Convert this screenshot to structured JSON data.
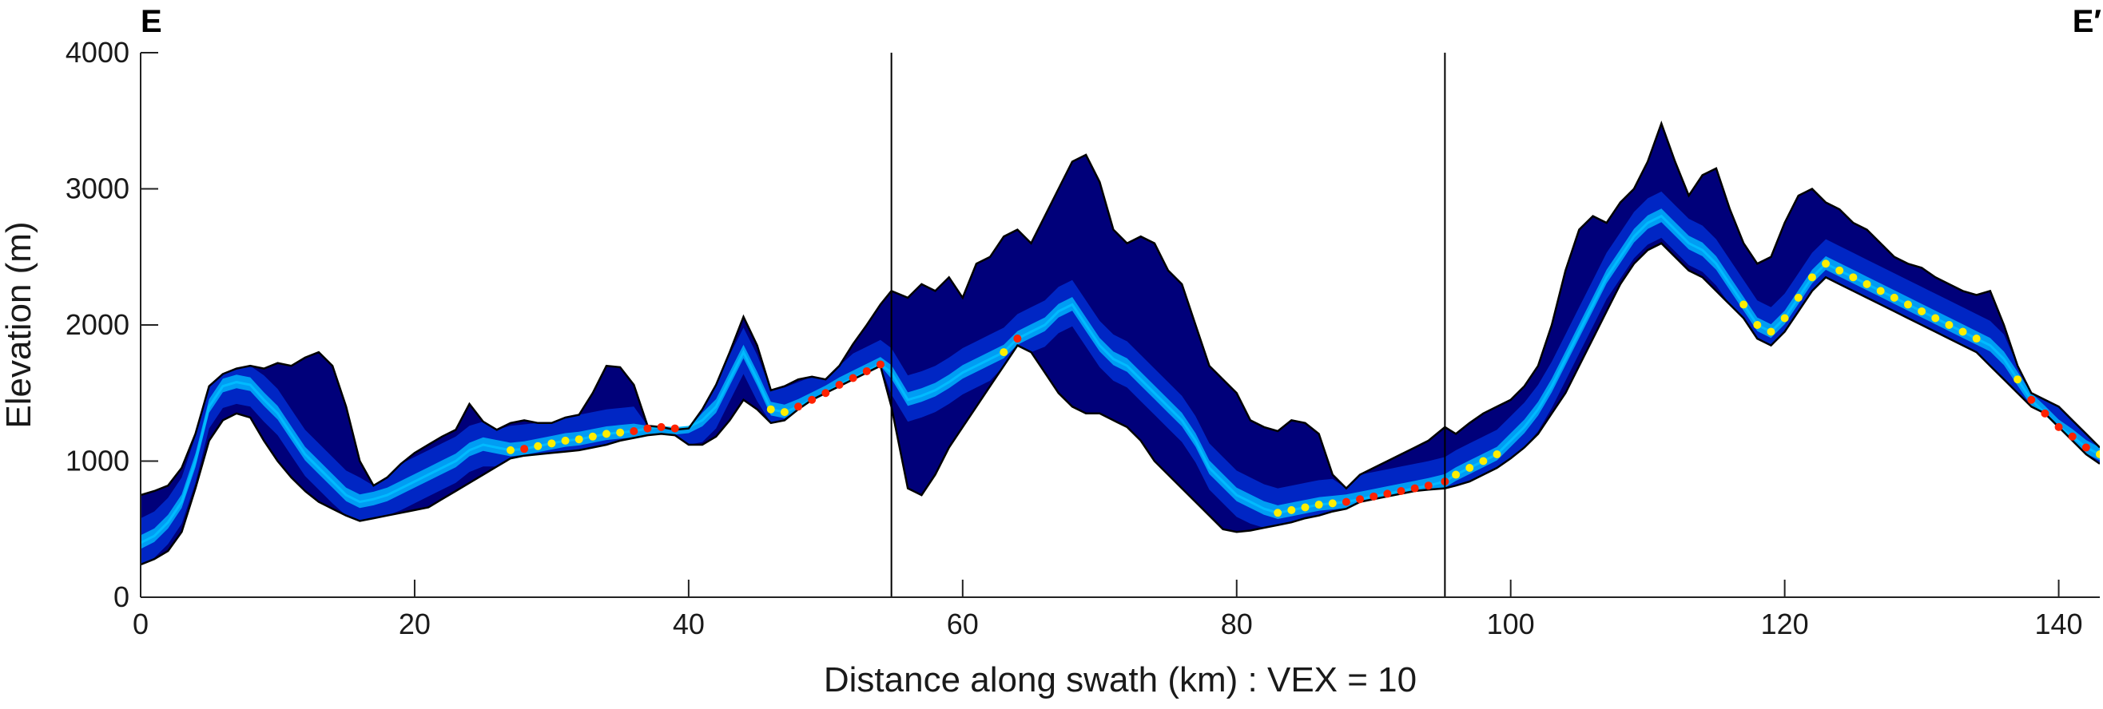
{
  "chart_data": {
    "type": "area",
    "title": "",
    "xlabel": "Distance along swath (km) : VEX = 10",
    "ylabel": "Elevation (m)",
    "xlim": [
      0,
      143
    ],
    "ylim": [
      0,
      4000
    ],
    "grid": false,
    "legend": "none",
    "xticks": [
      0,
      20,
      40,
      60,
      80,
      100,
      120,
      140
    ],
    "yticks": [
      0,
      1000,
      2000,
      3000,
      4000
    ],
    "corner_labels": {
      "left": "E",
      "right": "E′"
    },
    "section_dividers_km": [
      54.8,
      95.2
    ],
    "colors": {
      "envelope_fill": "#00007a",
      "density_low": "#0033dd",
      "density_mid": "#00bbff",
      "density_high": "#ffee00",
      "density_peak": "#ff2200",
      "outline": "#000000"
    },
    "series": [
      {
        "name": "",
        "role": "max_elevation",
        "x": [
          0,
          1,
          2,
          3,
          4,
          5,
          6,
          7,
          8,
          9,
          10,
          11,
          12,
          13,
          14,
          15,
          16,
          17,
          18,
          19,
          20,
          21,
          22,
          23,
          24,
          25,
          26,
          27,
          28,
          29,
          30,
          31,
          32,
          33,
          34,
          35,
          36,
          37,
          38,
          39,
          40,
          41,
          42,
          43,
          44,
          45,
          46,
          47,
          48,
          49,
          50,
          51,
          52,
          53,
          54,
          54.8,
          56,
          57,
          58,
          59,
          60,
          61,
          62,
          63,
          64,
          65,
          66,
          67,
          68,
          69,
          70,
          71,
          72,
          73,
          74,
          75,
          76,
          77,
          78,
          79,
          80,
          81,
          82,
          83,
          84,
          85,
          86,
          87,
          88,
          89,
          90,
          91,
          92,
          93,
          94,
          95.2,
          96,
          97,
          98,
          99,
          100,
          101,
          102,
          103,
          104,
          105,
          106,
          107,
          108,
          109,
          110,
          111,
          112,
          113,
          114,
          115,
          116,
          117,
          118,
          119,
          120,
          121,
          122,
          123,
          124,
          125,
          126,
          127,
          128,
          129,
          130,
          131,
          132,
          133,
          134,
          135,
          136,
          137,
          138,
          139,
          140,
          141,
          142,
          143
        ],
        "y": [
          750,
          780,
          820,
          950,
          1200,
          1550,
          1640,
          1680,
          1700,
          1680,
          1720,
          1700,
          1760,
          1800,
          1700,
          1400,
          1000,
          820,
          880,
          980,
          1060,
          1120,
          1180,
          1230,
          1420,
          1290,
          1230,
          1280,
          1300,
          1280,
          1280,
          1320,
          1340,
          1500,
          1700,
          1690,
          1560,
          1260,
          1250,
          1230,
          1240,
          1380,
          1560,
          1800,
          2060,
          1850,
          1520,
          1550,
          1600,
          1620,
          1600,
          1700,
          1860,
          2000,
          2150,
          2250,
          2200,
          2300,
          2250,
          2350,
          2200,
          2450,
          2500,
          2650,
          2700,
          2600,
          2800,
          3000,
          3200,
          3250,
          3050,
          2700,
          2600,
          2650,
          2600,
          2400,
          2300,
          2000,
          1700,
          1600,
          1500,
          1300,
          1250,
          1220,
          1300,
          1280,
          1200,
          900,
          800,
          900,
          950,
          1000,
          1050,
          1100,
          1150,
          1250,
          1200,
          1280,
          1350,
          1400,
          1450,
          1550,
          1700,
          2000,
          2400,
          2700,
          2800,
          2750,
          2900,
          3000,
          3200,
          3480,
          3200,
          2950,
          3100,
          3150,
          2850,
          2600,
          2450,
          2500,
          2750,
          2950,
          3000,
          2900,
          2850,
          2750,
          2700,
          2600,
          2500,
          2450,
          2420,
          2350,
          2300,
          2250,
          2220,
          2250,
          2000,
          1700,
          1500,
          1450,
          1400,
          1300,
          1200,
          1100
        ]
      },
      {
        "name": "",
        "role": "min_elevation",
        "x": [
          0,
          1,
          2,
          3,
          4,
          5,
          6,
          7,
          8,
          9,
          10,
          11,
          12,
          13,
          14,
          15,
          16,
          17,
          18,
          19,
          20,
          21,
          22,
          23,
          24,
          25,
          26,
          27,
          28,
          29,
          30,
          31,
          32,
          33,
          34,
          35,
          36,
          37,
          38,
          39,
          40,
          41,
          42,
          43,
          44,
          45,
          46,
          47,
          48,
          49,
          50,
          51,
          52,
          53,
          54,
          54.8,
          56,
          57,
          58,
          59,
          60,
          61,
          62,
          63,
          64,
          65,
          66,
          67,
          68,
          69,
          70,
          71,
          72,
          73,
          74,
          75,
          76,
          77,
          78,
          79,
          80,
          81,
          82,
          83,
          84,
          85,
          86,
          87,
          88,
          89,
          90,
          91,
          92,
          93,
          94,
          95.2,
          96,
          97,
          98,
          99,
          100,
          101,
          102,
          103,
          104,
          105,
          106,
          107,
          108,
          109,
          110,
          111,
          112,
          113,
          114,
          115,
          116,
          117,
          118,
          119,
          120,
          121,
          122,
          123,
          124,
          125,
          126,
          127,
          128,
          129,
          130,
          131,
          132,
          133,
          134,
          135,
          136,
          137,
          138,
          139,
          140,
          141,
          142,
          143
        ],
        "y": [
          240,
          280,
          340,
          480,
          800,
          1150,
          1300,
          1350,
          1320,
          1150,
          1000,
          880,
          780,
          700,
          650,
          600,
          560,
          580,
          600,
          620,
          640,
          660,
          720,
          780,
          840,
          900,
          960,
          1020,
          1040,
          1050,
          1060,
          1070,
          1080,
          1100,
          1120,
          1150,
          1170,
          1190,
          1200,
          1190,
          1120,
          1120,
          1180,
          1300,
          1450,
          1380,
          1280,
          1300,
          1380,
          1450,
          1500,
          1550,
          1600,
          1650,
          1700,
          1400,
          800,
          750,
          900,
          1100,
          1250,
          1400,
          1550,
          1700,
          1850,
          1800,
          1650,
          1500,
          1400,
          1350,
          1350,
          1300,
          1250,
          1150,
          1000,
          900,
          800,
          700,
          600,
          500,
          480,
          490,
          510,
          530,
          550,
          580,
          600,
          630,
          650,
          700,
          720,
          740,
          760,
          780,
          790,
          800,
          820,
          850,
          900,
          950,
          1020,
          1100,
          1200,
          1350,
          1500,
          1700,
          1900,
          2100,
          2300,
          2450,
          2550,
          2600,
          2500,
          2400,
          2350,
          2250,
          2150,
          2050,
          1900,
          1850,
          1950,
          2100,
          2250,
          2350,
          2300,
          2250,
          2200,
          2150,
          2100,
          2050,
          2000,
          1950,
          1900,
          1850,
          1800,
          1700,
          1600,
          1500,
          1400,
          1350,
          1250,
          1150,
          1050,
          980
        ]
      },
      {
        "name": "",
        "role": "most_frequent_elevation",
        "x": [
          0,
          1,
          2,
          3,
          4,
          5,
          6,
          7,
          8,
          9,
          10,
          11,
          12,
          13,
          14,
          15,
          16,
          17,
          18,
          19,
          20,
          21,
          22,
          23,
          24,
          25,
          26,
          27,
          28,
          29,
          30,
          31,
          32,
          33,
          34,
          35,
          36,
          37,
          38,
          39,
          40,
          41,
          42,
          43,
          44,
          45,
          46,
          47,
          48,
          49,
          50,
          51,
          52,
          53,
          54,
          54.8,
          56,
          57,
          58,
          59,
          60,
          61,
          62,
          63,
          64,
          65,
          66,
          67,
          68,
          69,
          70,
          71,
          72,
          73,
          74,
          75,
          76,
          77,
          78,
          79,
          80,
          81,
          82,
          83,
          84,
          85,
          86,
          87,
          88,
          89,
          90,
          91,
          92,
          93,
          94,
          95.2,
          96,
          97,
          98,
          99,
          100,
          101,
          102,
          103,
          104,
          105,
          106,
          107,
          108,
          109,
          110,
          111,
          112,
          113,
          114,
          115,
          116,
          117,
          118,
          119,
          120,
          121,
          122,
          123,
          124,
          125,
          126,
          127,
          128,
          129,
          130,
          131,
          132,
          133,
          134,
          135,
          136,
          137,
          138,
          139,
          140,
          141,
          142,
          143
        ],
        "y": [
          400,
          450,
          550,
          700,
          1000,
          1400,
          1550,
          1580,
          1560,
          1450,
          1350,
          1200,
          1050,
          950,
          850,
          750,
          700,
          720,
          750,
          800,
          850,
          900,
          950,
          1000,
          1080,
          1120,
          1100,
          1080,
          1090,
          1110,
          1130,
          1150,
          1160,
          1180,
          1200,
          1210,
          1220,
          1240,
          1250,
          1240,
          1250,
          1300,
          1400,
          1600,
          1800,
          1600,
          1380,
          1360,
          1400,
          1450,
          1500,
          1560,
          1610,
          1660,
          1710,
          1650,
          1450,
          1480,
          1520,
          1580,
          1650,
          1700,
          1750,
          1800,
          1900,
          1950,
          2000,
          2100,
          2150,
          2000,
          1850,
          1750,
          1700,
          1600,
          1500,
          1400,
          1300,
          1150,
          950,
          850,
          750,
          700,
          650,
          620,
          640,
          660,
          680,
          690,
          700,
          720,
          740,
          760,
          780,
          800,
          820,
          850,
          900,
          950,
          1000,
          1050,
          1150,
          1250,
          1380,
          1550,
          1750,
          1950,
          2150,
          2350,
          2500,
          2650,
          2750,
          2800,
          2700,
          2600,
          2550,
          2450,
          2300,
          2150,
          2000,
          1950,
          2050,
          2200,
          2350,
          2450,
          2400,
          2350,
          2300,
          2250,
          2200,
          2150,
          2100,
          2050,
          2000,
          1950,
          1900,
          1850,
          1750,
          1600,
          1450,
          1350,
          1250,
          1180,
          1100,
          1050
        ]
      }
    ]
  }
}
